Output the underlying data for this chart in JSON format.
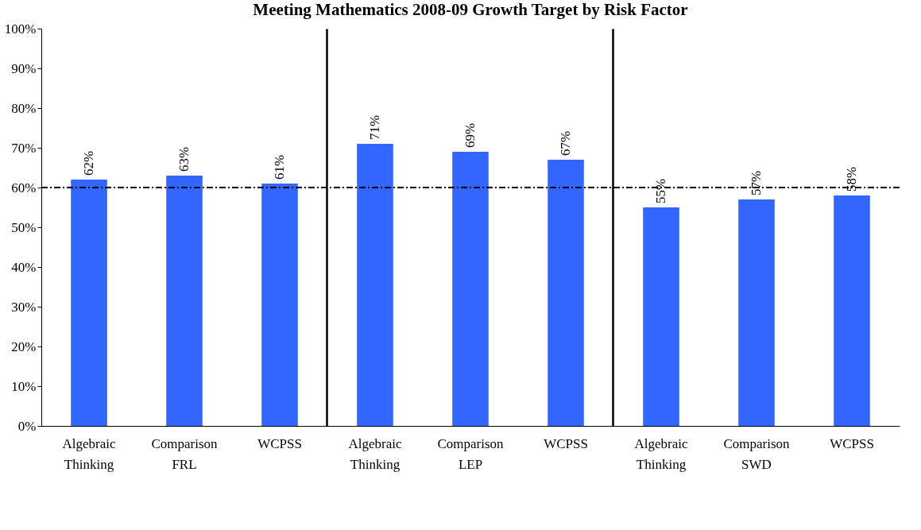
{
  "chart_data": {
    "type": "bar",
    "title": "Meeting Mathematics 2008-09 Growth Target by Risk Factor",
    "categories": [
      "Algebraic Thinking",
      "Comparison",
      "WCPSS",
      "Algebraic Thinking",
      "Comparison",
      "WCPSS",
      "Algebraic Thinking",
      "Comparison",
      "WCPSS"
    ],
    "values": [
      62,
      63,
      61,
      71,
      69,
      67,
      55,
      57,
      58
    ],
    "color": "#3366ff",
    "value_labels": [
      "62%",
      "63%",
      "61%",
      "71%",
      "69%",
      "67%",
      "55%",
      "57%",
      "58%"
    ],
    "ylim": [
      0,
      100
    ],
    "yticks": [
      {
        "value": 0,
        "label": "0%"
      },
      {
        "value": 10,
        "label": "10%"
      },
      {
        "value": 20,
        "label": "20%"
      },
      {
        "value": 30,
        "label": "30%"
      },
      {
        "value": 40,
        "label": "40%"
      },
      {
        "value": 50,
        "label": "50%"
      },
      {
        "value": 60,
        "label": "60%"
      },
      {
        "value": 70,
        "label": "70%"
      },
      {
        "value": 80,
        "label": "80%"
      },
      {
        "value": 90,
        "label": "90%"
      },
      {
        "value": 100,
        "label": "100%"
      }
    ],
    "ref_lines": [
      {
        "axis": "y",
        "value": 60,
        "line_style": "dashdot",
        "color": "#000000"
      }
    ],
    "annotations": [
      "FRL",
      "LEP",
      "SWD"
    ]
  }
}
